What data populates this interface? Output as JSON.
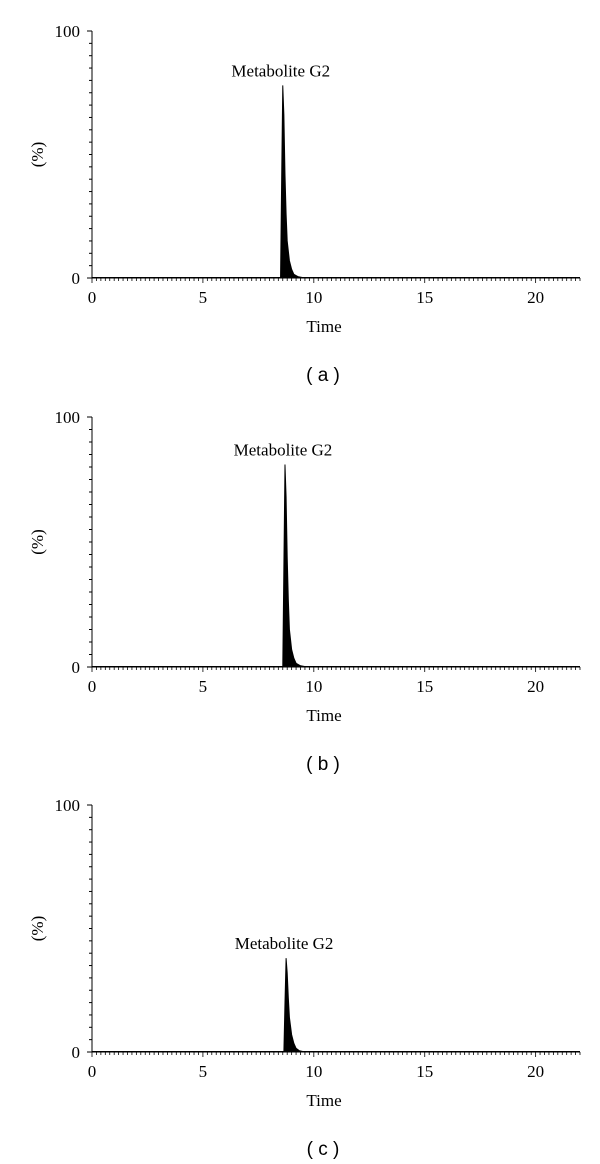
{
  "chart_data": [
    {
      "panel_label": "( a )",
      "type": "area",
      "xlabel": "Time",
      "ylabel": "(%)",
      "xlim": [
        0,
        22
      ],
      "ylim": [
        0,
        100
      ],
      "x_ticks": [
        "0",
        "5",
        "10",
        "15",
        "20"
      ],
      "y_ticks": [
        "0",
        "100"
      ],
      "series": [
        {
          "x": [
            0,
            8.5,
            8.55,
            8.6,
            8.65,
            8.7,
            8.75,
            8.8,
            8.9,
            9.0,
            9.1,
            9.3,
            9.6,
            22
          ],
          "y": [
            0,
            0,
            40,
            78,
            66,
            42,
            26,
            15,
            7,
            3.5,
            1.5,
            0.5,
            0,
            0
          ]
        }
      ],
      "annotations": [
        {
          "text": "Metabolite G2",
          "x": 8.6,
          "y": 78
        }
      ]
    },
    {
      "panel_label": "( b )",
      "type": "area",
      "xlabel": "Time",
      "ylabel": "(%)",
      "xlim": [
        0,
        22
      ],
      "ylim": [
        0,
        100
      ],
      "x_ticks": [
        "0",
        "5",
        "10",
        "15",
        "20"
      ],
      "y_ticks": [
        "0",
        "100"
      ],
      "series": [
        {
          "x": [
            0,
            8.6,
            8.65,
            8.7,
            8.75,
            8.8,
            8.85,
            8.9,
            9.0,
            9.1,
            9.2,
            9.4,
            9.7,
            22
          ],
          "y": [
            0,
            0,
            40,
            81,
            68,
            44,
            27,
            15,
            7,
            3.5,
            1.5,
            0.5,
            0,
            0
          ]
        }
      ],
      "annotations": [
        {
          "text": "Metabolite G2",
          "x": 8.7,
          "y": 81
        }
      ]
    },
    {
      "panel_label": "( c )",
      "type": "area",
      "xlabel": "Time",
      "ylabel": "(%)",
      "xlim": [
        0,
        22
      ],
      "ylim": [
        0,
        100
      ],
      "x_ticks": [
        "0",
        "5",
        "10",
        "15",
        "20"
      ],
      "y_ticks": [
        "0",
        "100"
      ],
      "series": [
        {
          "x": [
            0,
            8.65,
            8.7,
            8.75,
            8.8,
            8.85,
            8.9,
            9.0,
            9.1,
            9.2,
            9.35,
            9.6,
            22
          ],
          "y": [
            0,
            0,
            20,
            38,
            32,
            22,
            14,
            7,
            3.5,
            1.5,
            0.5,
            0,
            0
          ]
        }
      ],
      "annotations": [
        {
          "text": "Metabolite G2",
          "x": 8.75,
          "y": 38
        }
      ]
    }
  ]
}
